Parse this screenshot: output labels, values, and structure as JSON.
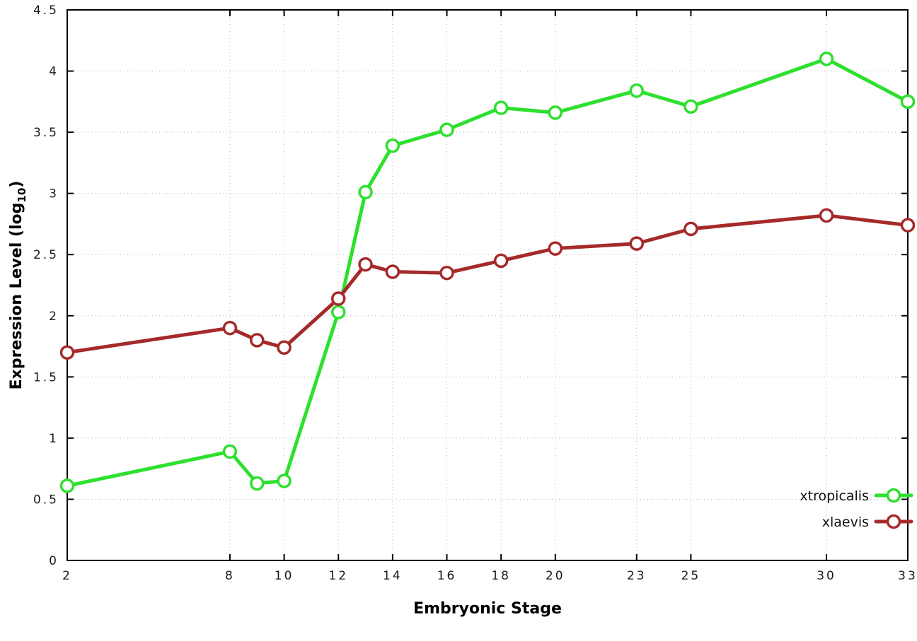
{
  "chart_data": {
    "type": "line",
    "title": "",
    "xlabel": "Embryonic Stage",
    "ylabel": "Expression Level (log10)",
    "ylabel_parts": {
      "pre": "Expression Level (log",
      "sub": "10",
      "post": ")"
    },
    "xlim": [
      2,
      33
    ],
    "ylim": [
      0,
      4.5
    ],
    "x_ticks": [
      2,
      8,
      10,
      12,
      14,
      16,
      18,
      20,
      23,
      25,
      30,
      33
    ],
    "y_ticks": [
      0,
      0.5,
      1,
      1.5,
      2,
      2.5,
      3,
      3.5,
      4,
      4.5
    ],
    "grid": true,
    "legend_position": "bottom-right",
    "colors": {
      "grid": "#b5b5b5",
      "axis": "#000000",
      "background": "#ffffff"
    },
    "x": [
      2,
      8,
      9,
      10,
      12,
      13,
      14,
      16,
      18,
      20,
      23,
      25,
      30,
      33
    ],
    "series": [
      {
        "name": "xtropicalis",
        "color": "#2ee02e",
        "values": [
          0.61,
          0.89,
          0.63,
          0.65,
          2.03,
          3.01,
          3.39,
          3.52,
          3.7,
          3.66,
          3.84,
          3.71,
          4.1,
          3.75
        ]
      },
      {
        "name": "xlaevis",
        "color": "#a52a2a",
        "values": [
          1.7,
          1.9,
          1.8,
          1.74,
          2.14,
          2.42,
          2.36,
          2.35,
          2.45,
          2.55,
          2.59,
          2.71,
          2.82,
          2.74
        ]
      }
    ]
  }
}
